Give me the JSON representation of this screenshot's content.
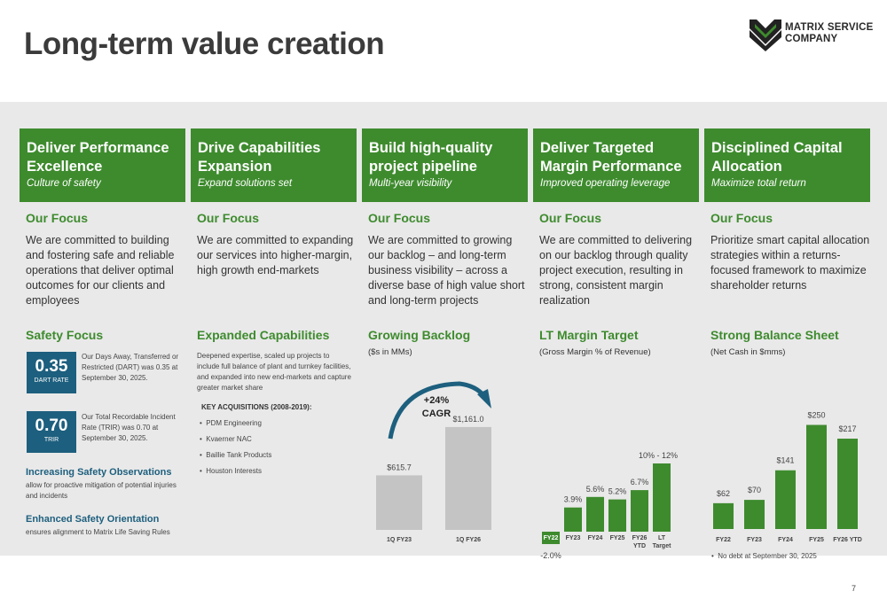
{
  "title": "Long-term value creation",
  "logo": {
    "line1": "MATRIX SERVICE",
    "line2": "COMPANY"
  },
  "columns": [
    {
      "title": "Deliver Performance Excellence",
      "subtitle": "Culture of safety",
      "focus_heading": "Our Focus",
      "focus_text": "We are committed to building and fostering safe and reliable operations that deliver optimal outcomes for our clients and employees"
    },
    {
      "title": "Drive Capabilities Expansion",
      "subtitle": "Expand solutions set",
      "focus_heading": "Our Focus",
      "focus_text": "We are committed to expanding our services into higher-margin, high growth end-markets"
    },
    {
      "title": "Build high-quality project pipeline",
      "subtitle": "Multi-year visibility",
      "focus_heading": "Our Focus",
      "focus_text": "We are committed to growing our backlog – and long-term business visibility – across a diverse base of high value short and long-term projects"
    },
    {
      "title": "Deliver Targeted Margin Performance",
      "subtitle": "Improved operating leverage",
      "focus_heading": "Our Focus",
      "focus_text": "We are committed to delivering on our backlog through quality project execution, resulting in strong, consistent margin realization"
    },
    {
      "title": "Disciplined Capital Allocation",
      "subtitle": "Maximize total return",
      "focus_heading": "Our Focus",
      "focus_text": "Prioritize smart capital allocation strategies within a returns-focused framework to maximize shareholder returns"
    }
  ],
  "safety": {
    "heading": "Safety Focus",
    "kpis": [
      {
        "value": "0.35",
        "label": "DART RATE",
        "text": "Our Days Away, Transferred or Restricted (DART) was 0.35 at September 30, 2025."
      },
      {
        "value": "0.70",
        "label": "TRIR",
        "text": "Our Total Recordable Incident Rate (TRIR) was 0.70 at September 30, 2025."
      }
    ],
    "items": [
      {
        "heading": "Increasing Safety Observations",
        "text": "allow for proactive mitigation of potential injuries and incidents"
      },
      {
        "heading": "Enhanced Safety Orientation",
        "text": "ensures alignment to Matrix Life Saving Rules"
      }
    ]
  },
  "capabilities": {
    "heading": "Expanded Capabilities",
    "text": "Deepened expertise, scaled up projects to include full balance of plant and turnkey facilities, and expanded into new end-markets and capture greater market share",
    "acq_heading": "KEY ACQUISITIONS (2008-2019):",
    "acquisitions": [
      "PDM Engineering",
      "Kvaerner NAC",
      "Baillie Tank Products",
      "Houston Interests"
    ]
  },
  "colors": {
    "green": "#3e8b2e",
    "navy": "#1d5f7e",
    "gray_bar": "#c4c4c4",
    "panel": "#e9e9e9"
  },
  "chart_data": [
    {
      "type": "bar",
      "title": "Growing Backlog",
      "subtitle": "($s in MMs)",
      "categories": [
        "1Q FY23",
        "1Q FY26"
      ],
      "values": [
        615.7,
        1161.0
      ],
      "labels": [
        "$615.7",
        "$1,161.0"
      ],
      "annotation": "+24% CAGR",
      "ylim": [
        0,
        1200
      ]
    },
    {
      "type": "bar",
      "title": "LT Margin Target",
      "subtitle": "(Gross Margin % of Revenue)",
      "categories": [
        "FY22",
        "FY23",
        "FY24",
        "FY25",
        "FY26 YTD",
        "LT Target"
      ],
      "values": [
        -2.0,
        3.9,
        5.6,
        5.2,
        6.7,
        11.0
      ],
      "labels": [
        "-2.0%",
        "3.9%",
        "5.6%",
        "5.2%",
        "6.7%",
        "10% - 12%"
      ],
      "ylim": [
        -2,
        12
      ]
    },
    {
      "type": "bar",
      "title": "Strong Balance Sheet",
      "subtitle": "(Net Cash in $mms)",
      "categories": [
        "FY22",
        "FY23",
        "FY24",
        "FY25",
        "FY26 YTD"
      ],
      "values": [
        62,
        70,
        141,
        250,
        217
      ],
      "labels": [
        "$62",
        "$70",
        "$141",
        "$250",
        "$217"
      ],
      "ylim": [
        0,
        260
      ],
      "note": "No debt at September 30, 2025"
    }
  ],
  "page_number": "7"
}
